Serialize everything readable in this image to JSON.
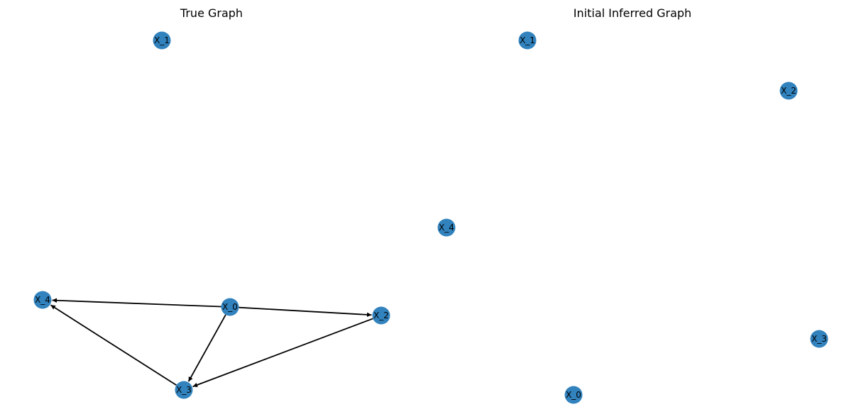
{
  "figure": {
    "node_color": "#3182bd",
    "edge_color": "#000000",
    "background": "#ffffff"
  },
  "panels": [
    {
      "title": "True Graph",
      "nodes": [
        {
          "id": "X_0",
          "label": "X_0"
        },
        {
          "id": "X_1",
          "label": "X_1"
        },
        {
          "id": "X_2",
          "label": "X_2"
        },
        {
          "id": "X_3",
          "label": "X_3"
        },
        {
          "id": "X_4",
          "label": "X_4"
        }
      ],
      "edges": [
        {
          "source": "X_0",
          "target": "X_4"
        },
        {
          "source": "X_0",
          "target": "X_2"
        },
        {
          "source": "X_0",
          "target": "X_3"
        },
        {
          "source": "X_2",
          "target": "X_3"
        },
        {
          "source": "X_3",
          "target": "X_4"
        }
      ]
    },
    {
      "title": "Initial Inferred Graph",
      "nodes": [
        {
          "id": "X_0",
          "label": "X_0"
        },
        {
          "id": "X_1",
          "label": "X_1"
        },
        {
          "id": "X_2",
          "label": "X_2"
        },
        {
          "id": "X_3",
          "label": "X_3"
        },
        {
          "id": "X_4",
          "label": "X_4"
        }
      ],
      "edges": []
    }
  ]
}
